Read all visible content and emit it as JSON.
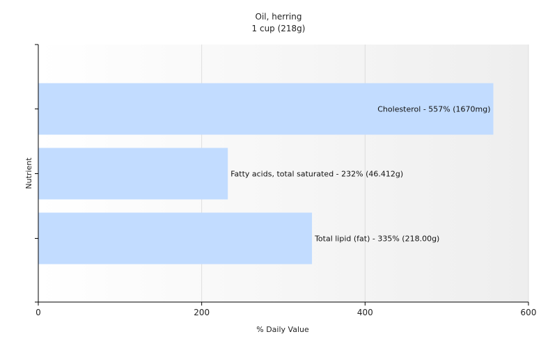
{
  "chart_data": {
    "type": "bar",
    "orientation": "horizontal",
    "title": "Oil, herring",
    "subtitle": "1 cup (218g)",
    "xlabel": "% Daily Value",
    "ylabel": "Nutrient",
    "xlim": [
      0,
      600
    ],
    "xticks": [
      0,
      200,
      400,
      600
    ],
    "grid": true,
    "categories": [
      "Cholesterol",
      "Fatty acids, total saturated",
      "Total lipid (fat)"
    ],
    "values": [
      557,
      232,
      335
    ],
    "labels": [
      "Cholesterol - 557% (1670mg)",
      "Fatty acids, total saturated - 232% (46.412g)",
      "Total lipid (fat) - 335% (218.00g)"
    ],
    "colors": {
      "bar": "#c2dcff",
      "axis": "#000000",
      "grid": "#dddddd"
    }
  }
}
